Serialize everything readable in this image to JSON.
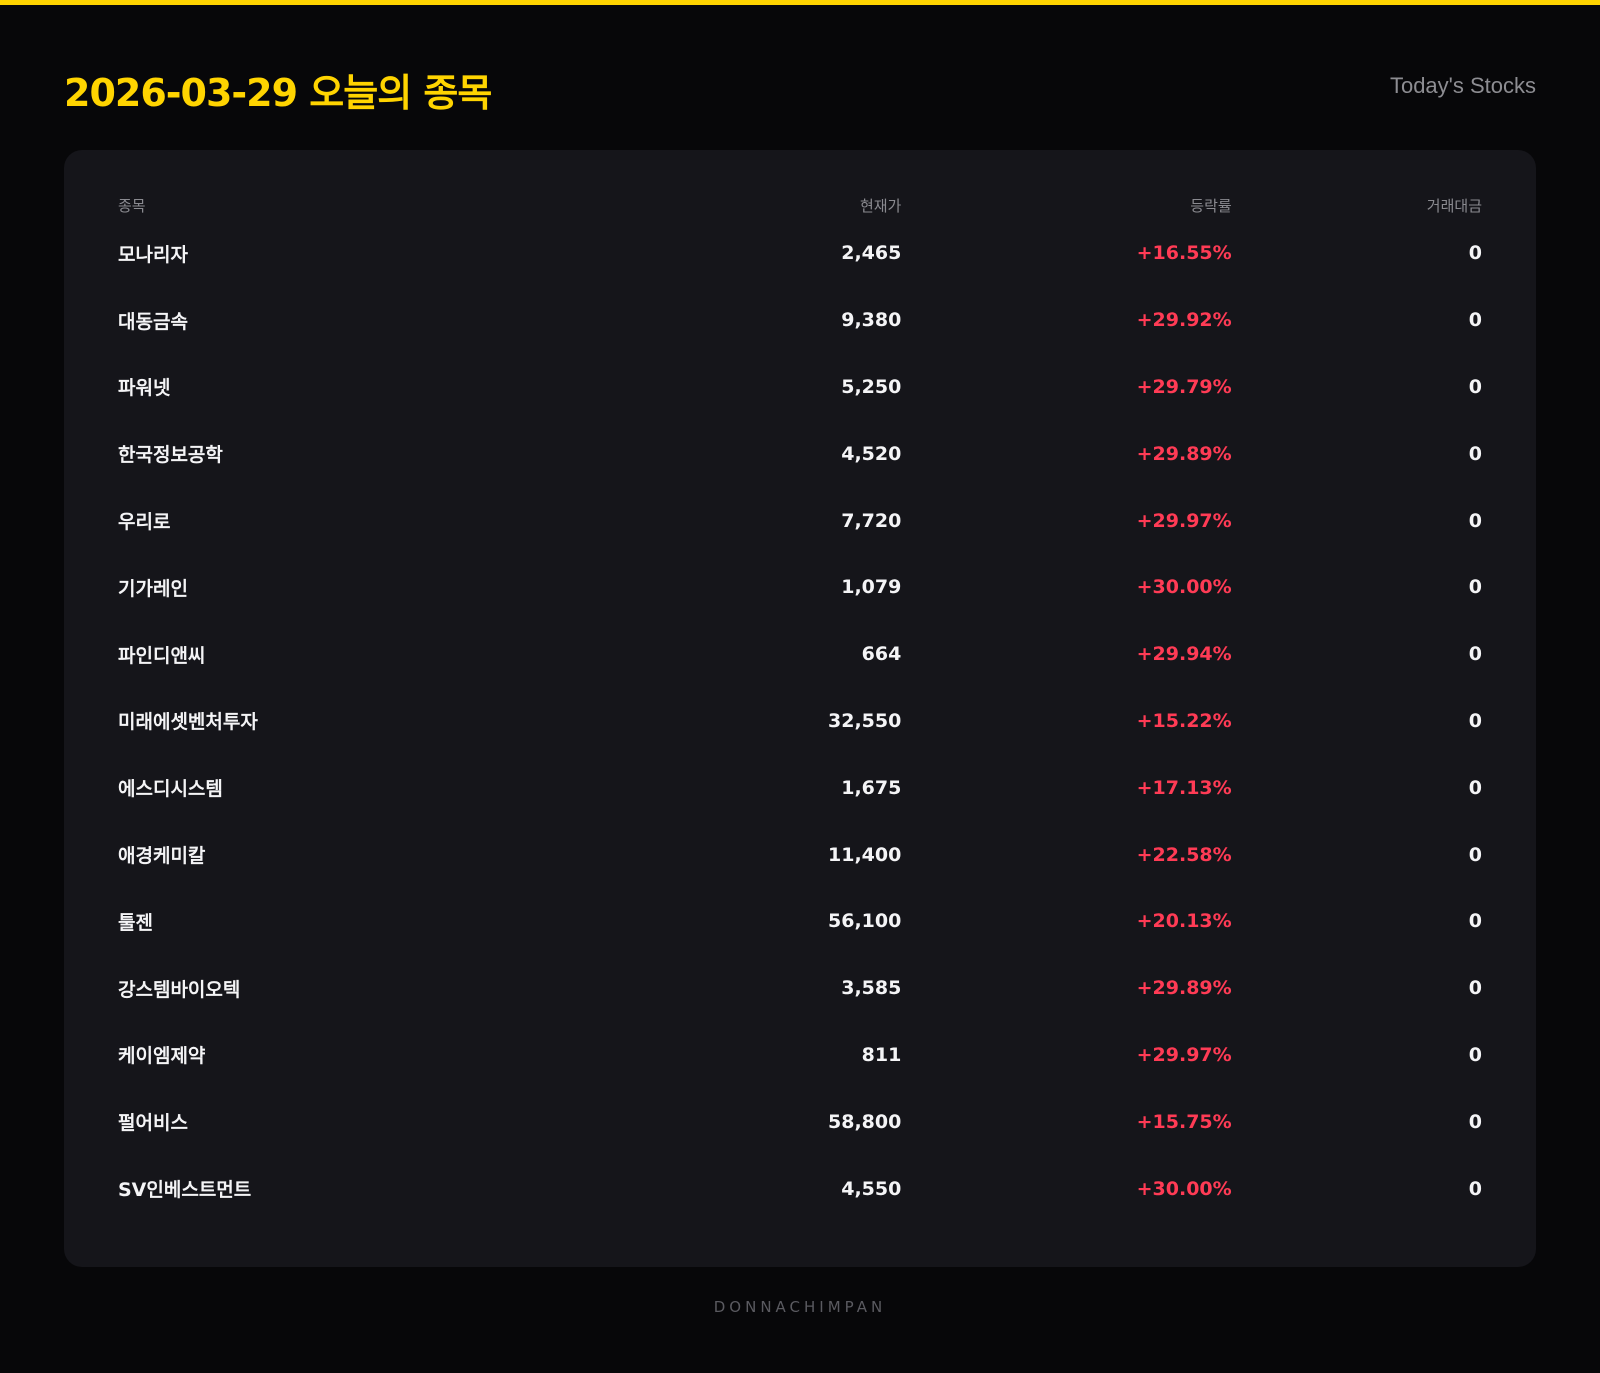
{
  "header": {
    "title": "2026-03-29 오늘의 종목",
    "subtitle": "Today's Stocks"
  },
  "colors": {
    "accent": "#ffd400",
    "up": "#ff3b55",
    "card": "#15151a",
    "background": "#070709"
  },
  "table": {
    "columns": [
      "종목",
      "현재가",
      "등락률",
      "거래대금"
    ],
    "rows": [
      {
        "name": "모나리자",
        "price": "2,465",
        "change": "+16.55%",
        "volume": "0"
      },
      {
        "name": "대동금속",
        "price": "9,380",
        "change": "+29.92%",
        "volume": "0"
      },
      {
        "name": "파워넷",
        "price": "5,250",
        "change": "+29.79%",
        "volume": "0"
      },
      {
        "name": "한국정보공학",
        "price": "4,520",
        "change": "+29.89%",
        "volume": "0"
      },
      {
        "name": "우리로",
        "price": "7,720",
        "change": "+29.97%",
        "volume": "0"
      },
      {
        "name": "기가레인",
        "price": "1,079",
        "change": "+30.00%",
        "volume": "0"
      },
      {
        "name": "파인디앤씨",
        "price": "664",
        "change": "+29.94%",
        "volume": "0"
      },
      {
        "name": "미래에셋벤처투자",
        "price": "32,550",
        "change": "+15.22%",
        "volume": "0"
      },
      {
        "name": "에스디시스템",
        "price": "1,675",
        "change": "+17.13%",
        "volume": "0"
      },
      {
        "name": "애경케미칼",
        "price": "11,400",
        "change": "+22.58%",
        "volume": "0"
      },
      {
        "name": "툴젠",
        "price": "56,100",
        "change": "+20.13%",
        "volume": "0"
      },
      {
        "name": "강스템바이오텍",
        "price": "3,585",
        "change": "+29.89%",
        "volume": "0"
      },
      {
        "name": "케이엠제약",
        "price": "811",
        "change": "+29.97%",
        "volume": "0"
      },
      {
        "name": "펄어비스",
        "price": "58,800",
        "change": "+15.75%",
        "volume": "0"
      },
      {
        "name": "SV인베스트먼트",
        "price": "4,550",
        "change": "+30.00%",
        "volume": "0"
      }
    ]
  },
  "footer": {
    "brand": "DONNACHIMPAN"
  }
}
